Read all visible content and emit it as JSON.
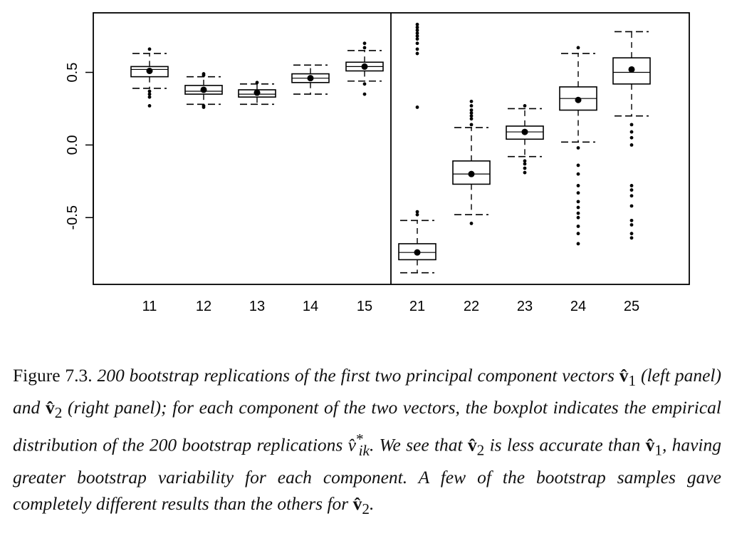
{
  "chart_data": {
    "type": "boxplot",
    "panels": [
      {
        "categories": [
          "11",
          "12",
          "13",
          "14",
          "15"
        ],
        "boxes": [
          {
            "label": "11",
            "mean": 0.51,
            "q1": 0.47,
            "median": 0.52,
            "q3": 0.54,
            "whisker_low": 0.39,
            "whisker_high": 0.63,
            "outliers": [
              0.27,
              0.33,
              0.35,
              0.37,
              0.66
            ]
          },
          {
            "label": "12",
            "mean": 0.38,
            "q1": 0.35,
            "median": 0.37,
            "q3": 0.41,
            "whisker_low": 0.28,
            "whisker_high": 0.47,
            "outliers": [
              0.26,
              0.27,
              0.48,
              0.49
            ]
          },
          {
            "label": "13",
            "mean": 0.36,
            "q1": 0.33,
            "median": 0.35,
            "q3": 0.38,
            "whisker_low": 0.28,
            "whisker_high": 0.42,
            "outliers": [
              0.43
            ]
          },
          {
            "label": "14",
            "mean": 0.46,
            "q1": 0.43,
            "median": 0.46,
            "q3": 0.49,
            "whisker_low": 0.35,
            "whisker_high": 0.55,
            "outliers": []
          },
          {
            "label": "15",
            "mean": 0.54,
            "q1": 0.51,
            "median": 0.54,
            "q3": 0.57,
            "whisker_low": 0.44,
            "whisker_high": 0.65,
            "outliers": [
              0.35,
              0.42,
              0.67,
              0.7
            ]
          }
        ]
      },
      {
        "categories": [
          "21",
          "22",
          "23",
          "24",
          "25"
        ],
        "boxes": [
          {
            "label": "21",
            "mean": -0.74,
            "q1": -0.79,
            "median": -0.74,
            "q3": -0.68,
            "whisker_low": -0.88,
            "whisker_high": -0.52,
            "outliers": [
              -0.48,
              -0.46,
              0.26,
              0.63,
              0.66,
              0.7,
              0.73,
              0.75,
              0.77,
              0.79,
              0.81,
              0.83
            ]
          },
          {
            "label": "22",
            "mean": -0.2,
            "q1": -0.27,
            "median": -0.2,
            "q3": -0.11,
            "whisker_low": -0.48,
            "whisker_high": 0.12,
            "outliers": [
              -0.54,
              0.14,
              0.18,
              0.2,
              0.22,
              0.24,
              0.27,
              0.3
            ]
          },
          {
            "label": "23",
            "mean": 0.09,
            "q1": 0.04,
            "median": 0.09,
            "q3": 0.13,
            "whisker_low": -0.08,
            "whisker_high": 0.25,
            "outliers": [
              -0.19,
              -0.16,
              -0.13,
              -0.11,
              0.27
            ]
          },
          {
            "label": "24",
            "mean": 0.31,
            "q1": 0.24,
            "median": 0.32,
            "q3": 0.4,
            "whisker_low": 0.02,
            "whisker_high": 0.63,
            "outliers": [
              -0.68,
              -0.61,
              -0.56,
              -0.5,
              -0.47,
              -0.43,
              -0.39,
              -0.33,
              -0.28,
              -0.2,
              -0.14,
              -0.02,
              0.67
            ]
          },
          {
            "label": "25",
            "mean": 0.52,
            "q1": 0.42,
            "median": 0.5,
            "q3": 0.6,
            "whisker_low": 0.2,
            "whisker_high": 0.78,
            "outliers": [
              -0.64,
              -0.61,
              -0.55,
              -0.52,
              -0.42,
              -0.35,
              -0.31,
              -0.28,
              0.0,
              0.05,
              0.09,
              0.14
            ]
          }
        ]
      }
    ],
    "y_ticks": [
      "0.5",
      "0.0",
      "-0.5"
    ],
    "y_tick_values": [
      0.5,
      0.0,
      -0.5
    ],
    "ylim": [
      -0.96,
      0.91
    ],
    "grid": false,
    "legend": "none"
  },
  "caption": {
    "label": "Figure 7.3.",
    "p1": "200 bootstrap replications of the first two principal component vectors ",
    "v1": "v̂",
    "sub1": "1",
    "p2": " (left panel) and ",
    "v2": "v̂",
    "sub2": "2",
    "p3": " (right panel); for each component of the two vectors, the boxplot indicates the empirical distribution of the 200 bootstrap replications ",
    "vik": "v̂",
    "vik_sup": "*",
    "vik_sub": "ik",
    "p4": ". We see that ",
    "v3": "v̂",
    "sub3": "2",
    "p5": " is less accurate than ",
    "v4": "v̂",
    "sub4": "1",
    "p6": ", having greater bootstrap variability for each component. A few of the bootstrap samples gave completely different results than the others for ",
    "v5": "v̂",
    "sub5": "2",
    "p7": "."
  }
}
